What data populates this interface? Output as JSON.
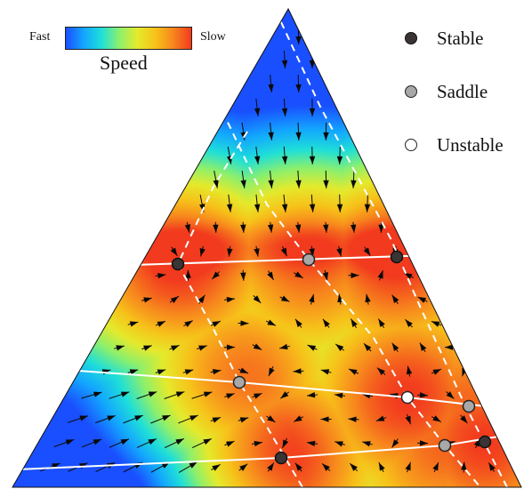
{
  "colorbar": {
    "left_label": "Fast",
    "right_label": "Slow",
    "title": "Speed",
    "colors": [
      "#1a4fff",
      "#13a6ff",
      "#1fe0d8",
      "#8ef06b",
      "#e5ea2c",
      "#f7c21a",
      "#f7861d",
      "#f23a1e"
    ]
  },
  "legend": {
    "items": [
      {
        "label": "Stable",
        "fill": "#3b3434",
        "stroke": "#111111"
      },
      {
        "label": "Saddle",
        "fill": "#a8a8a8",
        "stroke": "#222222"
      },
      {
        "label": "Unstable",
        "fill": "#ffffff",
        "stroke": "#222222"
      }
    ]
  },
  "colors": {
    "background": "#ffffff",
    "arrow": "#0a0a0a",
    "nullcline_white": "#ffffff"
  }
}
